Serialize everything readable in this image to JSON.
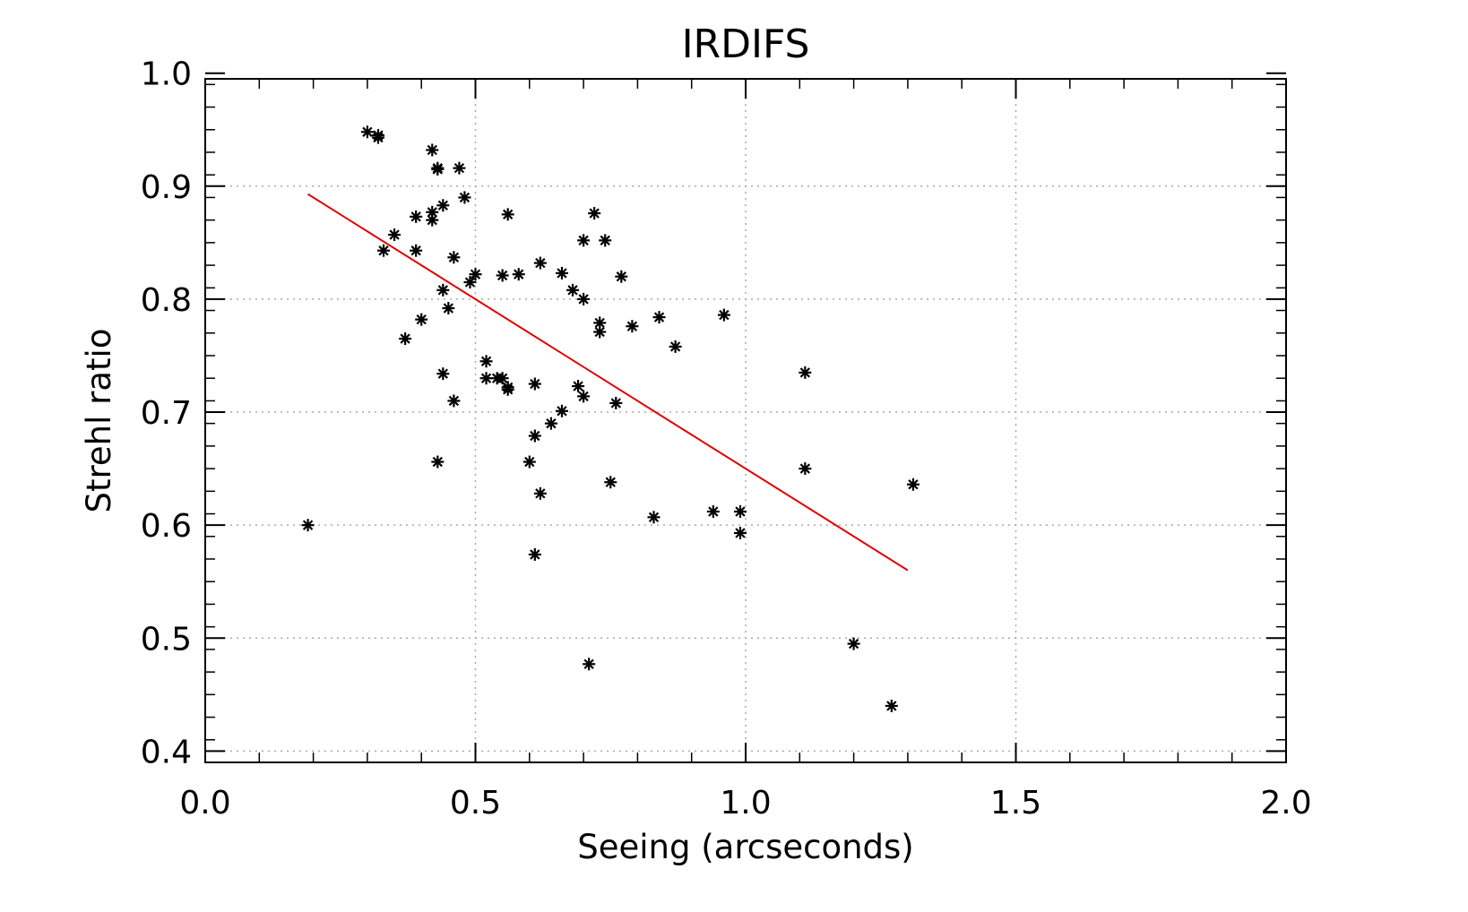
{
  "chart_data": {
    "type": "scatter",
    "title": "IRDIFS",
    "xlabel": "Seeing (arcseconds)",
    "ylabel": "Strehl ratio",
    "xlim": [
      0.0,
      2.0
    ],
    "ylim": [
      0.39,
      0.995
    ],
    "xticks": [
      0.0,
      0.5,
      1.0,
      1.5,
      2.0
    ],
    "xtick_labels": [
      "0.0",
      "0.5",
      "1.0",
      "1.5",
      "2.0"
    ],
    "yticks": [
      0.4,
      0.5,
      0.6,
      0.7,
      0.8,
      0.9,
      1.0
    ],
    "ytick_labels": [
      "0.4",
      "0.5",
      "0.6",
      "0.7",
      "0.8",
      "0.9",
      "1.0"
    ],
    "grid": true,
    "marker": "asterisk",
    "point_color": "#000000",
    "fit_color": "#e00000",
    "fit_line": {
      "x": [
        0.19,
        1.3
      ],
      "y": [
        0.893,
        0.56
      ]
    },
    "points": [
      [
        0.19,
        0.6
      ],
      [
        0.3,
        0.948
      ],
      [
        0.32,
        0.945
      ],
      [
        0.32,
        0.943
      ],
      [
        0.33,
        0.843
      ],
      [
        0.35,
        0.857
      ],
      [
        0.37,
        0.765
      ],
      [
        0.39,
        0.873
      ],
      [
        0.39,
        0.843
      ],
      [
        0.4,
        0.782
      ],
      [
        0.42,
        0.932
      ],
      [
        0.42,
        0.877
      ],
      [
        0.42,
        0.87
      ],
      [
        0.43,
        0.916
      ],
      [
        0.43,
        0.915
      ],
      [
        0.43,
        0.656
      ],
      [
        0.44,
        0.883
      ],
      [
        0.44,
        0.808
      ],
      [
        0.44,
        0.734
      ],
      [
        0.45,
        0.792
      ],
      [
        0.46,
        0.837
      ],
      [
        0.46,
        0.71
      ],
      [
        0.47,
        0.916
      ],
      [
        0.48,
        0.89
      ],
      [
        0.49,
        0.815
      ],
      [
        0.5,
        0.822
      ],
      [
        0.52,
        0.745
      ],
      [
        0.52,
        0.73
      ],
      [
        0.54,
        0.73
      ],
      [
        0.55,
        0.821
      ],
      [
        0.55,
        0.73
      ],
      [
        0.56,
        0.875
      ],
      [
        0.56,
        0.722
      ],
      [
        0.56,
        0.72
      ],
      [
        0.58,
        0.822
      ],
      [
        0.6,
        0.656
      ],
      [
        0.61,
        0.725
      ],
      [
        0.61,
        0.679
      ],
      [
        0.61,
        0.574
      ],
      [
        0.62,
        0.832
      ],
      [
        0.62,
        0.628
      ],
      [
        0.64,
        0.69
      ],
      [
        0.66,
        0.823
      ],
      [
        0.66,
        0.701
      ],
      [
        0.68,
        0.808
      ],
      [
        0.69,
        0.723
      ],
      [
        0.7,
        0.852
      ],
      [
        0.7,
        0.8
      ],
      [
        0.7,
        0.714
      ],
      [
        0.71,
        0.477
      ],
      [
        0.72,
        0.876
      ],
      [
        0.73,
        0.779
      ],
      [
        0.73,
        0.771
      ],
      [
        0.74,
        0.852
      ],
      [
        0.75,
        0.638
      ],
      [
        0.76,
        0.708
      ],
      [
        0.77,
        0.82
      ],
      [
        0.79,
        0.776
      ],
      [
        0.83,
        0.607
      ],
      [
        0.84,
        0.784
      ],
      [
        0.87,
        0.758
      ],
      [
        0.94,
        0.612
      ],
      [
        0.96,
        0.786
      ],
      [
        0.99,
        0.612
      ],
      [
        0.99,
        0.593
      ],
      [
        1.11,
        0.735
      ],
      [
        1.11,
        0.65
      ],
      [
        1.2,
        0.495
      ],
      [
        1.27,
        0.44
      ],
      [
        1.31,
        0.636
      ]
    ]
  }
}
